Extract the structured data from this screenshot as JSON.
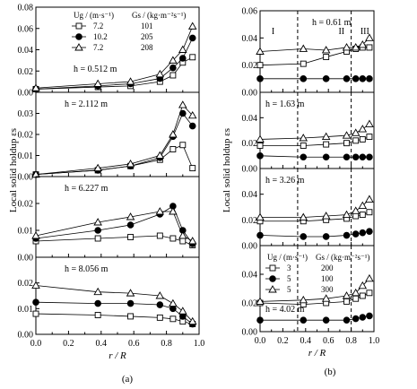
{
  "chart_data": [
    {
      "type": "line",
      "panel_group": "a",
      "subpanel": 1,
      "annotation": "h = 0.512 m",
      "xlim": [
        0.0,
        1.0
      ],
      "ylim": [
        0.0,
        0.08
      ],
      "yticks": [
        "0.00",
        "0.02",
        "0.04",
        "0.06",
        "0.08"
      ],
      "ylabel": "Local solid holdup εs",
      "legend": {
        "col1_header": "Ug / (m·s⁻¹)",
        "col2_header": "Gs / (kg·m⁻²s⁻¹)",
        "rows": [
          {
            "ug": "7.2",
            "gs": "101"
          },
          {
            "ug": "10.2",
            "gs": "205"
          },
          {
            "ug": "7.2",
            "gs": "208"
          }
        ]
      },
      "series": [
        {
          "marker": "square",
          "x": [
            0.0,
            0.38,
            0.58,
            0.76,
            0.84,
            0.9,
            0.96
          ],
          "y": [
            0.003,
            0.005,
            0.006,
            0.01,
            0.016,
            0.028,
            0.033
          ]
        },
        {
          "marker": "circle",
          "x": [
            0.0,
            0.38,
            0.58,
            0.76,
            0.84,
            0.9,
            0.96
          ],
          "y": [
            0.003,
            0.006,
            0.008,
            0.013,
            0.023,
            0.032,
            0.051
          ]
        },
        {
          "marker": "triangle",
          "x": [
            0.0,
            0.38,
            0.58,
            0.76,
            0.84,
            0.9,
            0.96
          ],
          "y": [
            0.004,
            0.008,
            0.01,
            0.017,
            0.03,
            0.04,
            0.062
          ]
        }
      ]
    },
    {
      "type": "line",
      "panel_group": "a",
      "subpanel": 2,
      "annotation": "h = 2.112 m",
      "xlim": [
        0.0,
        1.0
      ],
      "ylim": [
        0.0,
        0.04
      ],
      "yticks": [
        "0.00",
        "0.01",
        "0.02",
        "0.03",
        "0.04"
      ],
      "series": [
        {
          "marker": "square",
          "x": [
            0.0,
            0.38,
            0.58,
            0.76,
            0.84,
            0.9,
            0.96
          ],
          "y": [
            0.001,
            0.003,
            0.005,
            0.008,
            0.013,
            0.015,
            0.004
          ]
        },
        {
          "marker": "circle",
          "x": [
            0.0,
            0.38,
            0.58,
            0.76,
            0.84,
            0.9,
            0.96
          ],
          "y": [
            0.001,
            0.003,
            0.005,
            0.009,
            0.019,
            0.03,
            0.024
          ]
        },
        {
          "marker": "triangle",
          "x": [
            0.0,
            0.38,
            0.58,
            0.76,
            0.84,
            0.9,
            0.96
          ],
          "y": [
            0.001,
            0.004,
            0.006,
            0.01,
            0.02,
            0.034,
            0.029
          ]
        }
      ]
    },
    {
      "type": "line",
      "panel_group": "a",
      "subpanel": 3,
      "annotation": "h = 6.227 m",
      "xlim": [
        0.0,
        1.0
      ],
      "ylim": [
        0.0,
        0.03
      ],
      "yticks": [
        "0.00",
        "0.01",
        "0.02",
        "0.03"
      ],
      "series": [
        {
          "marker": "square",
          "x": [
            0.0,
            0.38,
            0.58,
            0.76,
            0.84,
            0.9,
            0.96
          ],
          "y": [
            0.006,
            0.007,
            0.0075,
            0.008,
            0.007,
            0.006,
            0.0045
          ]
        },
        {
          "marker": "circle",
          "x": [
            0.0,
            0.38,
            0.58,
            0.76,
            0.84,
            0.9,
            0.96
          ],
          "y": [
            0.007,
            0.01,
            0.012,
            0.016,
            0.019,
            0.01,
            0.005
          ]
        },
        {
          "marker": "triangle",
          "x": [
            0.0,
            0.38,
            0.58,
            0.76,
            0.84,
            0.9,
            0.96
          ],
          "y": [
            0.008,
            0.013,
            0.015,
            0.017,
            0.017,
            0.008,
            0.006
          ]
        }
      ]
    },
    {
      "type": "line",
      "panel_group": "a",
      "subpanel": 4,
      "annotation": "h = 8.056 m",
      "xlim": [
        0.0,
        1.0
      ],
      "ylim": [
        0.0,
        0.03
      ],
      "yticks": [
        "0.00",
        "0.01",
        "0.02",
        "0.03"
      ],
      "xticks": [
        "0.0",
        "0.2",
        "0.4",
        "0.6",
        "0.8",
        "1.0"
      ],
      "xlabel": "r / R",
      "series": [
        {
          "marker": "square",
          "x": [
            0.0,
            0.38,
            0.58,
            0.76,
            0.84,
            0.9,
            0.96
          ],
          "y": [
            0.008,
            0.0075,
            0.007,
            0.0065,
            0.006,
            0.005,
            0.004
          ]
        },
        {
          "marker": "circle",
          "x": [
            0.0,
            0.38,
            0.58,
            0.76,
            0.84,
            0.9,
            0.96
          ],
          "y": [
            0.0125,
            0.012,
            0.012,
            0.0115,
            0.01,
            0.007,
            0.004
          ]
        },
        {
          "marker": "triangle",
          "x": [
            0.0,
            0.38,
            0.58,
            0.76,
            0.84,
            0.9,
            0.96
          ],
          "y": [
            0.019,
            0.0165,
            0.016,
            0.015,
            0.012,
            0.009,
            0.005
          ]
        }
      ]
    },
    {
      "type": "line",
      "panel_group": "b",
      "subpanel": 1,
      "annotation": "h = 0.61 m",
      "regions": [
        "I",
        "II",
        "III"
      ],
      "region_boundaries": [
        0.33,
        0.8
      ],
      "xlim": [
        0.0,
        1.0
      ],
      "ylim": [
        0.0,
        0.06
      ],
      "yticks": [
        "0.00",
        "0.02",
        "0.04",
        "0.06"
      ],
      "series": [
        {
          "marker": "square",
          "x": [
            0.0,
            0.38,
            0.58,
            0.76,
            0.84,
            0.9,
            0.96
          ],
          "y": [
            0.02,
            0.021,
            0.026,
            0.03,
            0.032,
            0.033,
            0.033
          ]
        },
        {
          "marker": "circle",
          "x": [
            0.0,
            0.38,
            0.58,
            0.76,
            0.84,
            0.9,
            0.96
          ],
          "y": [
            0.01,
            0.01,
            0.01,
            0.01,
            0.01,
            0.01,
            0.01
          ]
        },
        {
          "marker": "triangle",
          "x": [
            0.0,
            0.38,
            0.58,
            0.76,
            0.84,
            0.9,
            0.96
          ],
          "y": [
            0.03,
            0.032,
            0.031,
            0.033,
            0.033,
            0.035,
            0.04
          ]
        }
      ]
    },
    {
      "type": "line",
      "panel_group": "b",
      "subpanel": 2,
      "annotation": "h = 1.63 m",
      "xlim": [
        0.0,
        1.0
      ],
      "ylim": [
        0.0,
        0.06
      ],
      "yticks": [
        "0.00",
        "0.02",
        "0.04",
        "0.06"
      ],
      "series": [
        {
          "marker": "square",
          "x": [
            0.0,
            0.38,
            0.58,
            0.76,
            0.84,
            0.9,
            0.96
          ],
          "y": [
            0.018,
            0.018,
            0.019,
            0.02,
            0.022,
            0.023,
            0.025
          ]
        },
        {
          "marker": "circle",
          "x": [
            0.0,
            0.38,
            0.58,
            0.76,
            0.84,
            0.9,
            0.96
          ],
          "y": [
            0.01,
            0.009,
            0.009,
            0.009,
            0.009,
            0.009,
            0.009
          ]
        },
        {
          "marker": "triangle",
          "x": [
            0.0,
            0.38,
            0.58,
            0.76,
            0.84,
            0.9,
            0.96
          ],
          "y": [
            0.023,
            0.024,
            0.025,
            0.026,
            0.028,
            0.031,
            0.035
          ]
        }
      ]
    },
    {
      "type": "line",
      "panel_group": "b",
      "subpanel": 3,
      "annotation": "h = 3.26 m",
      "xlim": [
        0.0,
        1.0
      ],
      "ylim": [
        0.0,
        0.06
      ],
      "yticks": [
        "0.00",
        "0.02",
        "0.04",
        "0.06"
      ],
      "series": [
        {
          "marker": "square",
          "x": [
            0.0,
            0.38,
            0.58,
            0.76,
            0.84,
            0.9,
            0.96
          ],
          "y": [
            0.019,
            0.019,
            0.02,
            0.021,
            0.023,
            0.024,
            0.026
          ]
        },
        {
          "marker": "circle",
          "x": [
            0.0,
            0.38,
            0.58,
            0.76,
            0.84,
            0.9,
            0.96
          ],
          "y": [
            0.008,
            0.007,
            0.007,
            0.008,
            0.009,
            0.01,
            0.011
          ]
        },
        {
          "marker": "triangle",
          "x": [
            0.0,
            0.38,
            0.58,
            0.76,
            0.84,
            0.9,
            0.96
          ],
          "y": [
            0.022,
            0.022,
            0.023,
            0.024,
            0.027,
            0.031,
            0.036
          ]
        }
      ]
    },
    {
      "type": "line",
      "panel_group": "b",
      "subpanel": 4,
      "annotation": "h = 4.02 m",
      "xlim": [
        0.0,
        1.0
      ],
      "ylim": [
        0.0,
        0.06
      ],
      "yticks": [
        "0.00",
        "0.02",
        "0.04",
        "0.06"
      ],
      "xticks": [
        "0.0",
        "0.2",
        "0.4",
        "0.6",
        "0.8",
        "1.0"
      ],
      "xlabel": "r / R",
      "ylabel": "Local solid holdup εs",
      "legend": {
        "col1_header": "Ug / (m·s⁻¹)",
        "col2_header": "Gs / (kg·m⁻²s⁻¹)",
        "rows": [
          {
            "ug": "3",
            "gs": "200"
          },
          {
            "ug": "5",
            "gs": "100"
          },
          {
            "ug": "5",
            "gs": "300"
          }
        ]
      },
      "series": [
        {
          "marker": "square",
          "x": [
            0.0,
            0.38,
            0.58,
            0.76,
            0.84,
            0.9,
            0.96
          ],
          "y": [
            0.02,
            0.019,
            0.02,
            0.021,
            0.023,
            0.025,
            0.027
          ]
        },
        {
          "marker": "circle",
          "x": [
            0.0,
            0.38,
            0.58,
            0.76,
            0.84,
            0.9,
            0.96
          ],
          "y": [
            0.008,
            0.008,
            0.008,
            0.008,
            0.009,
            0.01,
            0.011
          ]
        },
        {
          "marker": "triangle",
          "x": [
            0.0,
            0.38,
            0.58,
            0.76,
            0.84,
            0.9,
            0.96
          ],
          "y": [
            0.021,
            0.022,
            0.023,
            0.025,
            0.027,
            0.032,
            0.037
          ]
        }
      ]
    }
  ],
  "captions": {
    "a": "(a)",
    "b": "(b)"
  }
}
